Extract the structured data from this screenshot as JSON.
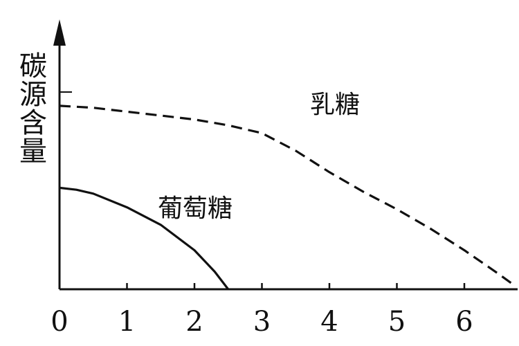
{
  "chart_data": {
    "type": "line",
    "title": "",
    "xlabel": "",
    "ylabel": "碳源含量",
    "xlim": [
      0,
      6.7
    ],
    "ylim": [
      0,
      1
    ],
    "x_ticks": [
      "0",
      "1",
      "2",
      "3",
      "4",
      "5",
      "6"
    ],
    "grid": false,
    "legend": "none",
    "series": [
      {
        "name": "乳糖",
        "style": "dashed",
        "color": "#111111",
        "points": [
          [
            0,
            0.94
          ],
          [
            0.5,
            0.93
          ],
          [
            1,
            0.91
          ],
          [
            1.5,
            0.89
          ],
          [
            2,
            0.87
          ],
          [
            2.5,
            0.84
          ],
          [
            3,
            0.8
          ],
          [
            3.5,
            0.71
          ],
          [
            4,
            0.6
          ],
          [
            4.5,
            0.5
          ],
          [
            5,
            0.41
          ],
          [
            5.5,
            0.31
          ],
          [
            6,
            0.2
          ],
          [
            6.5,
            0.08
          ],
          [
            6.7,
            0.03
          ]
        ]
      },
      {
        "name": "葡萄糖",
        "style": "solid",
        "color": "#111111",
        "points": [
          [
            0,
            0.52
          ],
          [
            0.25,
            0.51
          ],
          [
            0.5,
            0.49
          ],
          [
            1,
            0.42
          ],
          [
            1.5,
            0.33
          ],
          [
            2,
            0.2
          ],
          [
            2.3,
            0.09
          ],
          [
            2.5,
            0.0
          ]
        ]
      }
    ]
  }
}
